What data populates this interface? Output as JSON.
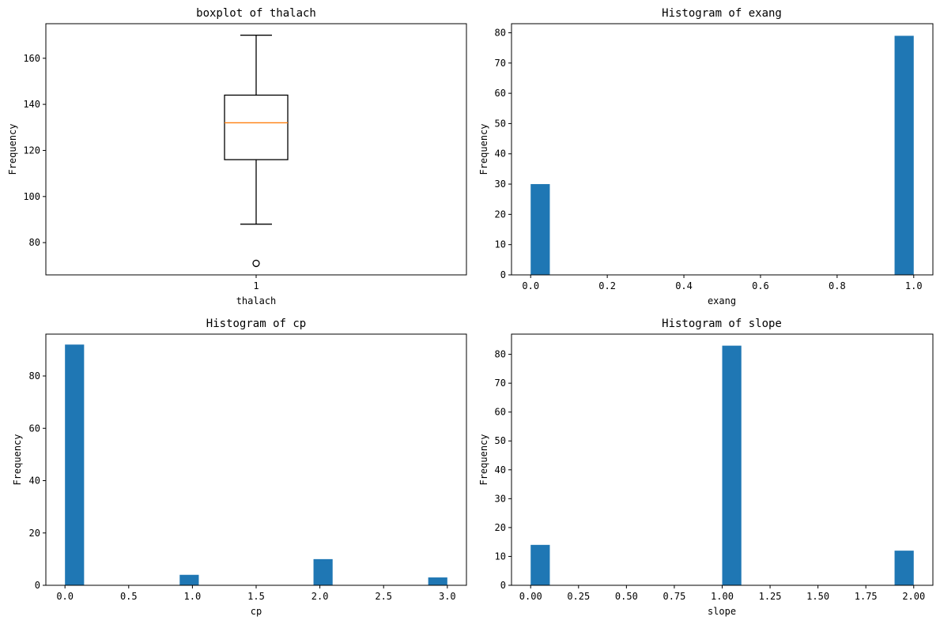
{
  "chart_data": [
    {
      "type": "boxplot",
      "title": "boxplot of thalach",
      "xlabel": "thalach",
      "ylabel": "Frequency",
      "categories": [
        "1"
      ],
      "ylim": [
        66,
        175
      ],
      "yticks": [
        80,
        100,
        120,
        140,
        160
      ],
      "box": {
        "whisker_low": 88,
        "q1": 116,
        "median": 132,
        "q3": 144,
        "whisker_high": 170,
        "outliers": [
          71
        ]
      },
      "colors": {
        "median": "#ff7f0e",
        "box": "#000000"
      }
    },
    {
      "type": "bar",
      "title": "Histogram of exang",
      "xlabel": "exang",
      "ylabel": "Frequency",
      "xlim": [
        -0.05,
        1.05
      ],
      "ylim": [
        0,
        83
      ],
      "xticks": [
        "0.0",
        "0.2",
        "0.4",
        "0.6",
        "0.8",
        "1.0"
      ],
      "yticks": [
        0,
        10,
        20,
        30,
        40,
        50,
        60,
        70,
        80
      ],
      "bars": [
        {
          "x0": 0.0,
          "x1": 0.05,
          "value": 30
        },
        {
          "x0": 0.95,
          "x1": 1.0,
          "value": 79
        }
      ],
      "color": "#1f77b4"
    },
    {
      "type": "bar",
      "title": "Histogram of cp",
      "xlabel": "cp",
      "ylabel": "Frequency",
      "xlim": [
        -0.15,
        3.15
      ],
      "ylim": [
        0,
        96
      ],
      "xticks": [
        "0.0",
        "0.5",
        "1.0",
        "1.5",
        "2.0",
        "2.5",
        "3.0"
      ],
      "yticks": [
        0,
        20,
        40,
        60,
        80
      ],
      "bars": [
        {
          "x0": 0.0,
          "x1": 0.15,
          "value": 92
        },
        {
          "x0": 0.9,
          "x1": 1.05,
          "value": 4
        },
        {
          "x0": 1.95,
          "x1": 2.1,
          "value": 10
        },
        {
          "x0": 2.85,
          "x1": 3.0,
          "value": 3
        }
      ],
      "color": "#1f77b4"
    },
    {
      "type": "bar",
      "title": "Histogram of slope",
      "xlabel": "slope",
      "ylabel": "Frequency",
      "xlim": [
        -0.1,
        2.1
      ],
      "ylim": [
        0,
        87
      ],
      "xticks": [
        "0.00",
        "0.25",
        "0.50",
        "0.75",
        "1.00",
        "1.25",
        "1.50",
        "1.75",
        "2.00"
      ],
      "yticks": [
        0,
        10,
        20,
        30,
        40,
        50,
        60,
        70,
        80
      ],
      "bars": [
        {
          "x0": 0.0,
          "x1": 0.1,
          "value": 14
        },
        {
          "x0": 1.0,
          "x1": 1.1,
          "value": 83
        },
        {
          "x0": 1.9,
          "x1": 2.0,
          "value": 12
        }
      ],
      "color": "#1f77b4"
    }
  ]
}
